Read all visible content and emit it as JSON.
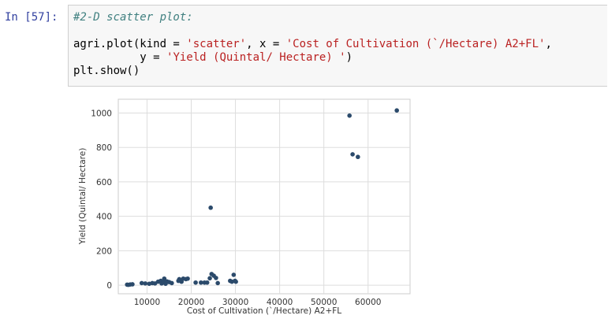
{
  "cell": {
    "prompt": "In [57]:",
    "code_lines": [
      [
        {
          "t": "#2-D scatter plot:",
          "c": "cm"
        }
      ],
      [
        {
          "t": "",
          "c": "kw"
        }
      ],
      [
        {
          "t": "agri.plot(kind = ",
          "c": "kw"
        },
        {
          "t": "'scatter'",
          "c": "st"
        },
        {
          "t": ", x = ",
          "c": "kw"
        },
        {
          "t": "'Cost of Cultivation (`/Hectare) A2+FL'",
          "c": "st"
        },
        {
          "t": ",",
          "c": "kw"
        }
      ],
      [
        {
          "t": "          y = ",
          "c": "kw"
        },
        {
          "t": "'Yield (Quintal/ Hectare) '",
          "c": "st"
        },
        {
          "t": ")",
          "c": "kw"
        }
      ],
      [
        {
          "t": "plt.show()",
          "c": "kw"
        }
      ]
    ]
  },
  "chart_data": {
    "type": "scatter",
    "xlabel": "Cost of Cultivation (`/Hectare) A2+FL",
    "ylabel": "Yield (Quintal/ Hectare)",
    "xlim": [
      3500,
      69500
    ],
    "ylim": [
      -50,
      1080
    ],
    "xticks": [
      10000,
      20000,
      30000,
      40000,
      50000,
      60000
    ],
    "xtick_labels": [
      "10000",
      "20000",
      "30000",
      "40000",
      "50000",
      "60000"
    ],
    "yticks": [
      0,
      200,
      400,
      600,
      800,
      1000
    ],
    "ytick_labels": [
      "0",
      "200",
      "400",
      "600",
      "800",
      "1000"
    ],
    "grid": true,
    "point_color": "#2b4a6b",
    "points": [
      [
        5500,
        3
      ],
      [
        5800,
        2
      ],
      [
        6200,
        4
      ],
      [
        6700,
        5
      ],
      [
        8800,
        12
      ],
      [
        9600,
        10
      ],
      [
        10500,
        8
      ],
      [
        11200,
        12
      ],
      [
        11800,
        10
      ],
      [
        12500,
        20
      ],
      [
        13100,
        25
      ],
      [
        13300,
        10
      ],
      [
        13700,
        20
      ],
      [
        13900,
        38
      ],
      [
        14200,
        8
      ],
      [
        14500,
        22
      ],
      [
        15000,
        18
      ],
      [
        15600,
        12
      ],
      [
        17100,
        25
      ],
      [
        17300,
        35
      ],
      [
        17800,
        20
      ],
      [
        18200,
        38
      ],
      [
        18800,
        35
      ],
      [
        19200,
        38
      ],
      [
        21000,
        15
      ],
      [
        22200,
        15
      ],
      [
        23000,
        15
      ],
      [
        23600,
        15
      ],
      [
        24200,
        40
      ],
      [
        24600,
        65
      ],
      [
        25100,
        55
      ],
      [
        25600,
        42
      ],
      [
        26000,
        12
      ],
      [
        24400,
        450
      ],
      [
        28800,
        25
      ],
      [
        29200,
        20
      ],
      [
        29600,
        60
      ],
      [
        29900,
        25
      ],
      [
        30100,
        20
      ],
      [
        55800,
        985
      ],
      [
        56500,
        760
      ],
      [
        57700,
        745
      ],
      [
        66500,
        1015
      ]
    ]
  }
}
